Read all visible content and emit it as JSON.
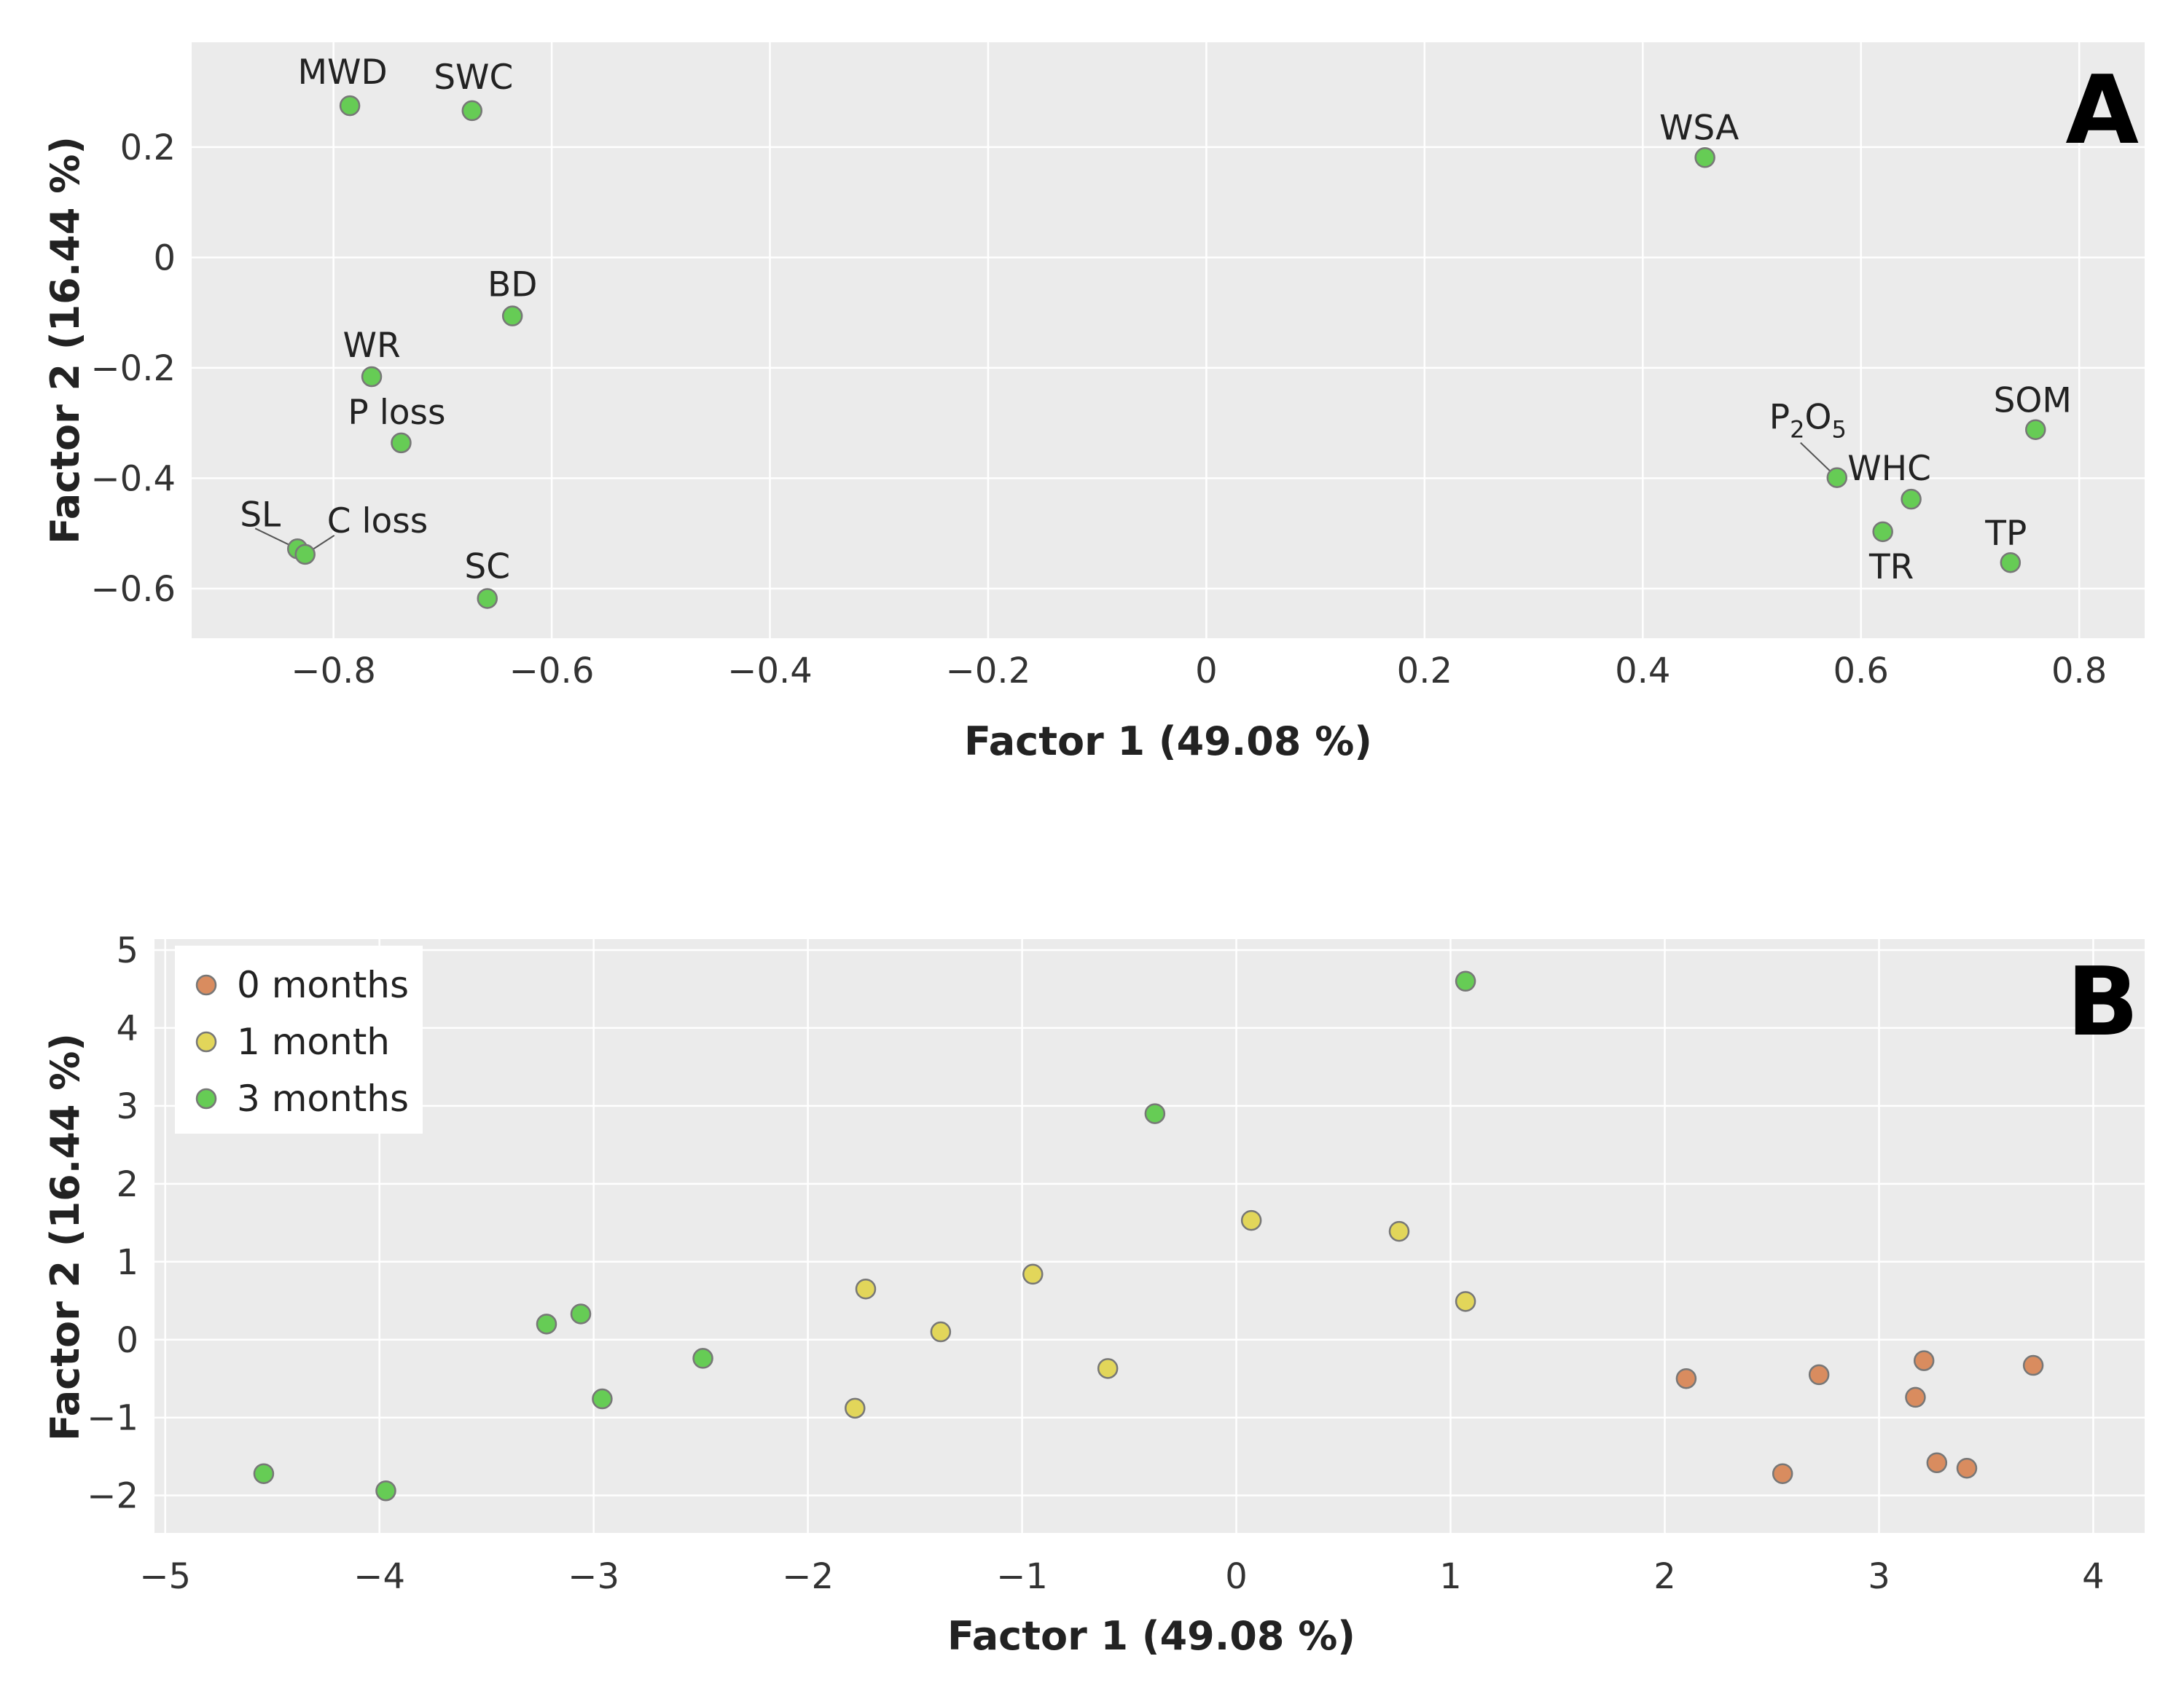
{
  "chart_data": [
    {
      "type": "scatter",
      "panel": "A",
      "xlabel": "Factor 1 (49.08 %)",
      "ylabel": "Factor 2 (16.44 %)",
      "xlim": [
        -0.93,
        0.86
      ],
      "ylim": [
        -0.69,
        0.39
      ],
      "xticks": [
        -0.8,
        -0.6,
        -0.4,
        -0.2,
        0,
        0.2,
        0.4,
        0.6,
        0.8
      ],
      "xtick_labels": [
        "−0.8",
        "−0.6",
        "−0.4",
        "−0.2",
        "0",
        "0.2",
        "0.4",
        "0.6",
        "0.8"
      ],
      "yticks": [
        0.2,
        0,
        -0.2,
        -0.4,
        -0.6
      ],
      "ytick_labels": [
        "0.2",
        "0",
        "−0.2",
        "−0.4",
        "−0.6"
      ],
      "point_color": "#66cc55",
      "points": [
        {
          "label": "MWD",
          "x": -0.785,
          "y": 0.275
        },
        {
          "label": "SWC",
          "x": -0.673,
          "y": 0.266
        },
        {
          "label": "BD",
          "x": -0.636,
          "y": -0.106
        },
        {
          "label": "WR",
          "x": -0.765,
          "y": -0.216
        },
        {
          "label": "P loss",
          "x": -0.738,
          "y": -0.336
        },
        {
          "label": "SL",
          "x": -0.833,
          "y": -0.528
        },
        {
          "label": "C loss",
          "x": -0.826,
          "y": -0.538
        },
        {
          "label": "SC",
          "x": -0.659,
          "y": -0.618
        },
        {
          "label": "WSA",
          "x": 0.457,
          "y": 0.181
        },
        {
          "label": "P2O5",
          "x": 0.578,
          "y": -0.399,
          "label_main": "P",
          "sub1": "2",
          "label_mid": "O",
          "sub2": "5"
        },
        {
          "label": "SOM",
          "x": 0.76,
          "y": -0.312
        },
        {
          "label": "WHC",
          "x": 0.646,
          "y": -0.438
        },
        {
          "label": "TR",
          "x": 0.62,
          "y": -0.497
        },
        {
          "label": "TP",
          "x": 0.737,
          "y": -0.553
        }
      ]
    },
    {
      "type": "scatter",
      "panel": "B",
      "xlabel": "Factor 1 (49.08 %)",
      "ylabel": "Factor 2 (16.44 %)",
      "xlim": [
        -5.05,
        4.24
      ],
      "ylim": [
        -2.48,
        5.14
      ],
      "xticks": [
        -5,
        -4,
        -3,
        -2,
        -1,
        0,
        1,
        2,
        3,
        4
      ],
      "xtick_labels": [
        "−5",
        "−4",
        "−3",
        "−2",
        "−1",
        "0",
        "1",
        "2",
        "3",
        "4"
      ],
      "yticks": [
        5,
        4,
        3,
        2,
        1,
        0,
        -1,
        -2
      ],
      "ytick_labels": [
        "5",
        "4",
        "3",
        "2",
        "1",
        "0",
        "−1",
        "−2"
      ],
      "legend_position": "top-left",
      "series": [
        {
          "name": "0 months",
          "color": "#d98c5f",
          "x": [
            2.1,
            2.72,
            3.21,
            3.72,
            3.17,
            2.55,
            3.27,
            3.41
          ],
          "y": [
            -0.5,
            -0.45,
            -0.27,
            -0.33,
            -0.74,
            -1.72,
            -1.58,
            -1.65
          ]
        },
        {
          "name": "1 month",
          "color": "#e2d65a",
          "x": [
            0.07,
            0.76,
            1.07,
            -0.95,
            -1.73,
            -1.38,
            -0.6,
            -1.78
          ],
          "y": [
            1.53,
            1.39,
            0.49,
            0.84,
            0.65,
            0.1,
            -0.37,
            -0.88
          ]
        },
        {
          "name": "3 months",
          "color": "#66cc55",
          "x": [
            1.07,
            -0.38,
            -3.22,
            -3.06,
            -2.49,
            -2.96,
            -4.54,
            -3.97
          ],
          "y": [
            4.6,
            2.9,
            0.2,
            0.33,
            -0.24,
            -0.76,
            -1.72,
            -1.94
          ]
        }
      ]
    }
  ]
}
